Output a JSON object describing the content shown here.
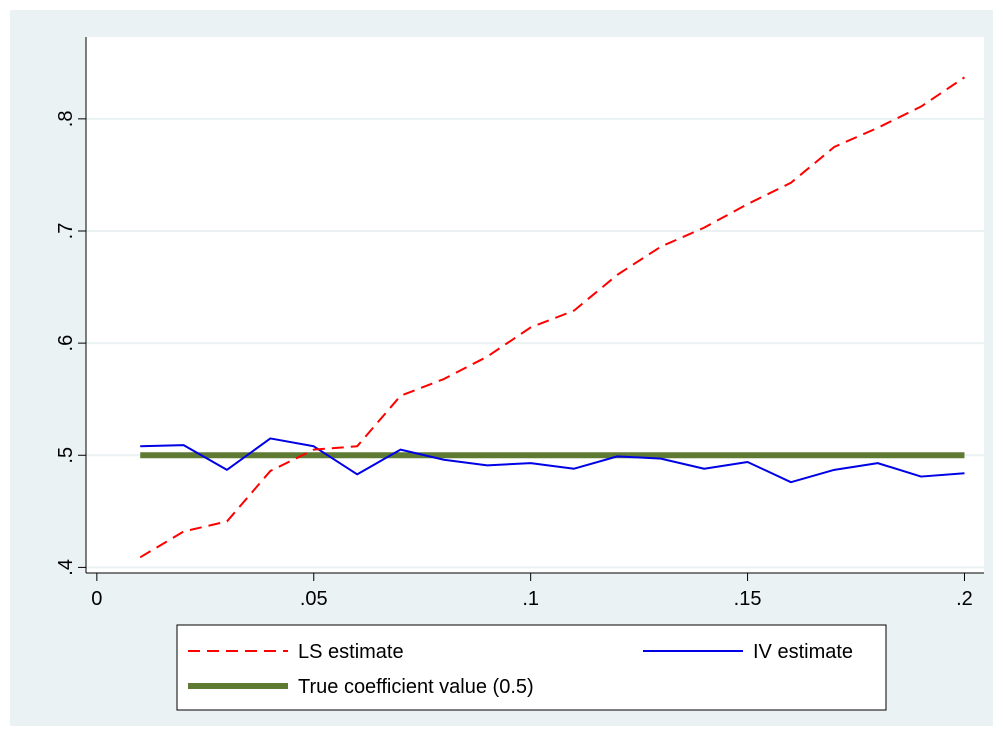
{
  "chart_data": {
    "type": "line",
    "title": "",
    "xlabel": "",
    "ylabel": "",
    "xlim": [
      -0.0025,
      0.2045
    ],
    "ylim": [
      0.395,
      0.873
    ],
    "x_ticks": [
      {
        "value": 0,
        "label": "0"
      },
      {
        "value": 0.05,
        "label": ".05"
      },
      {
        "value": 0.1,
        "label": ".1"
      },
      {
        "value": 0.15,
        "label": ".15"
      },
      {
        "value": 0.2,
        "label": ".2"
      }
    ],
    "y_ticks": [
      {
        "value": 0.4,
        "label": ".4"
      },
      {
        "value": 0.5,
        "label": ".5"
      },
      {
        "value": 0.6,
        "label": ".6"
      },
      {
        "value": 0.7,
        "label": ".7"
      },
      {
        "value": 0.8,
        "label": ".8"
      }
    ],
    "grid": "horizontal",
    "legend_position": "bottom",
    "x": [
      0.01,
      0.02,
      0.03,
      0.04,
      0.05,
      0.06,
      0.07,
      0.08,
      0.09,
      0.1,
      0.11,
      0.12,
      0.13,
      0.14,
      0.15,
      0.16,
      0.17,
      0.18,
      0.19,
      0.2
    ],
    "series": [
      {
        "name": "LS estimate",
        "color": "#ff0000",
        "style": "dashed",
        "values": [
          0.409,
          0.432,
          0.441,
          0.486,
          0.505,
          0.508,
          0.553,
          0.568,
          0.588,
          0.614,
          0.629,
          0.661,
          0.686,
          0.703,
          0.724,
          0.743,
          0.775,
          0.792,
          0.811,
          0.837
        ]
      },
      {
        "name": "IV estimate",
        "color": "#0000e6",
        "style": "solid",
        "values": [
          0.508,
          0.509,
          0.487,
          0.515,
          0.508,
          0.483,
          0.505,
          0.496,
          0.491,
          0.493,
          0.488,
          0.499,
          0.497,
          0.488,
          0.494,
          0.476,
          0.487,
          0.493,
          0.481,
          0.484
        ]
      },
      {
        "name": "True coefficient value (0.5)",
        "color": "#5f7a32",
        "style": "thick",
        "values": [
          0.5,
          0.5,
          0.5,
          0.5,
          0.5,
          0.5,
          0.5,
          0.5,
          0.5,
          0.5,
          0.5,
          0.5,
          0.5,
          0.5,
          0.5,
          0.5,
          0.5,
          0.5,
          0.5,
          0.5
        ]
      }
    ]
  }
}
